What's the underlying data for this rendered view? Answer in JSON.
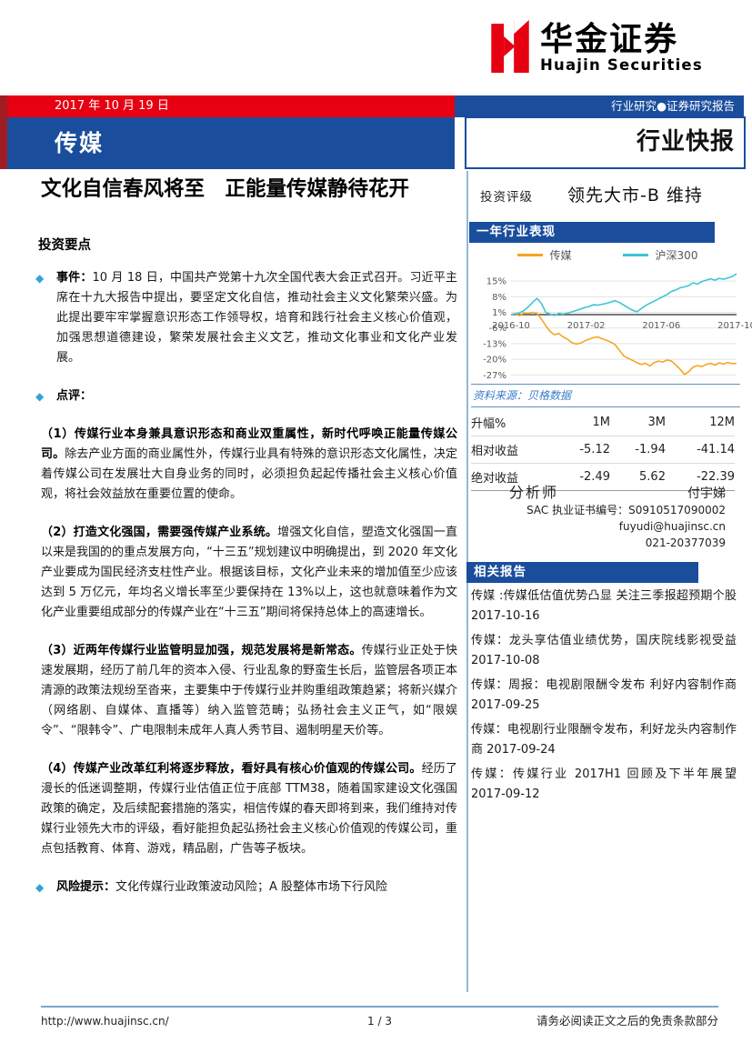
{
  "brand": {
    "logo_cn": "华金证券",
    "logo_en": "Huajin Securities"
  },
  "header": {
    "date": "2017 年 10 月 19 日",
    "right_tag": "行业研究●证券研究报告",
    "sector": "传媒",
    "report_type": "行业快报"
  },
  "main": {
    "title": "文化自信春风将至　正能量传媒静待花开",
    "section_heading": "投资要点",
    "bullets": [
      {
        "diamond": true,
        "lead": "事件：",
        "rest": "10 月 18 日，中国共产党第十九次全国代表大会正式召开。习近平主席在十九大报告中提出，要坚定文化自信，推动社会主义文化繁荣兴盛。为此提出要牢牢掌握意识形态工作领导权，培育和践行社会主义核心价值观，加强思想道德建设，繁荣发展社会主义文艺，推动文化事业和文化产业发展。"
      },
      {
        "diamond": true,
        "lead": "点评：",
        "rest": ""
      },
      {
        "diamond": false,
        "lead": "（1）传媒行业本身兼具意识形态和商业双重属性，新时代呼唤正能量传媒公司。",
        "rest": "除去产业方面的商业属性外，传媒行业具有特殊的意识形态文化属性，决定着传媒公司在发展壮大自身业务的同时，必须担负起起传播社会主义核心价值观，将社会效益放在重要位置的使命。"
      },
      {
        "diamond": false,
        "lead": "（2）打造文化强国，需要强传媒产业系统。",
        "rest": "增强文化自信，塑造文化强国一直以来是我国的的重点发展方向，“十三五”规划建议中明确提出，到 2020 年文化产业要成为国民经济支柱性产业。根据该目标，文化产业未来的增加值至少应该达到 5 万亿元，年均名义增长率至少要保持在 13%以上，这也就意味着作为文化产业重要组成部分的传媒产业在“十三五”期间将保持总体上的高速增长。"
      },
      {
        "diamond": false,
        "lead": "（3）近两年传媒行业监管明显加强，规范发展将是新常态。",
        "rest": "传媒行业正处于快速发展期，经历了前几年的资本入侵、行业乱象的野蛮生长后，监管层各项正本清源的政策法规纷至沓来，主要集中于传媒行业并购重组政策趋紧；将新兴媒介（网络剧、自媒体、直播等）纳入监管范畴；弘扬社会主义正气，如“限娱令”、“限韩令”、广电限制未成年人真人秀节目、遏制明星天价等。"
      },
      {
        "diamond": false,
        "lead": "（4）传媒产业改革红利将逐步释放，看好具有核心价值观的传媒公司。",
        "rest": "经历了漫长的低迷调整期，传媒行业估值正位于底部 TTM38，随着国家建设文化强国政策的确定，及后续配套措施的落实，相信传媒的春天即将到来，我们维持对传媒行业领先大市的评级，看好能担负起弘扬社会主义核心价值观的传媒公司，重点包括教育、体育、游戏，精品剧，广告等子板块。"
      },
      {
        "diamond": true,
        "lead": "风险提示：",
        "rest": "文化传媒行业政策波动风险；A 股整体市场下行风险"
      }
    ]
  },
  "sidebar": {
    "rating_label": "投资评级",
    "rating_value": "领先大市-B 维持",
    "chart_banner": "一年行业表现",
    "source": "资料来源：贝格数据",
    "perf_table": {
      "headers": [
        "升幅%",
        "1M",
        "3M",
        "12M"
      ],
      "rows": [
        {
          "label": "相对收益",
          "values": [
            "-5.12",
            "-1.94",
            "-41.14"
          ]
        },
        {
          "label": "绝对收益",
          "values": [
            "-2.49",
            "5.62",
            "-22.39"
          ]
        }
      ]
    },
    "analyst": {
      "heading": "分析师",
      "name": "付宇娣",
      "sac": "SAC 执业证书编号：S0910517090002",
      "email": "fuyudi@huajinsc.cn",
      "phone": "021-20377039"
    },
    "related_banner": "相关报告",
    "related_reports": [
      {
        "title": "传媒 :传媒低估值优势凸显 关注三季报超预期个股",
        "date": "2017-10-16"
      },
      {
        "title": "传媒：龙头享估值业绩优势，国庆院线影视受益",
        "date": "2017-10-08"
      },
      {
        "title": "传媒：周报：电视剧限酬令发布 利好内容制作商",
        "date": "2017-09-25"
      },
      {
        "title": "传媒：电视剧行业限酬令发布，利好龙头内容制作商",
        "date": "2017-09-24"
      },
      {
        "title": "传媒：传媒行业 2017H1 回顾及下半年展望",
        "date": "2017-09-12"
      }
    ]
  },
  "chart_data": {
    "type": "line",
    "title": "一年行业表现",
    "x_tick_labels": [
      "2016-10",
      "2017-02",
      "2017-06",
      "2017-10"
    ],
    "y_ticks": [
      15,
      8,
      1,
      -6,
      -13,
      -20,
      -27
    ],
    "y_unit": "%",
    "ylim": [
      -28.5,
      19.5
    ],
    "grid": true,
    "legend_position": "top",
    "series": [
      {
        "name": "传媒",
        "color": "#F5A623",
        "values": [
          0,
          0.3,
          -0.5,
          0.8,
          0.5,
          1.0,
          0.5,
          -2,
          -5,
          -7.5,
          -9,
          -8.5,
          -10,
          -11,
          -12.5,
          -13.2,
          -12.8,
          -11.8,
          -11,
          -10.3,
          -10,
          -10.8,
          -11.5,
          -12.3,
          -13.5,
          -16,
          -18.5,
          -19.5,
          -20.5,
          -21.5,
          -22.3,
          -21.8,
          -23,
          -21.5,
          -20.8,
          -21.2,
          -20.3,
          -20.8,
          -22.5,
          -24.5,
          -26.8,
          -25.5,
          -23.5,
          -22.8,
          -23.3,
          -22.3,
          -21.8,
          -22.6,
          -21.6,
          -22.2,
          -21.4,
          -22.0,
          -21.8
        ]
      },
      {
        "name": "沪深300",
        "color": "#3EC6D2",
        "values": [
          0,
          0.4,
          0.8,
          1.8,
          3.5,
          5.5,
          7.2,
          5.0,
          1.0,
          0.2,
          -0.4,
          0.5,
          0.2,
          0.6,
          1.2,
          1.8,
          2.4,
          3.2,
          3.6,
          4.4,
          4.2,
          4.6,
          5.0,
          5.6,
          6.2,
          5.4,
          4.2,
          3.0,
          2.0,
          1.2,
          2.6,
          4.0,
          5.0,
          6.0,
          7.0,
          8.0,
          9.0,
          10.4,
          11.0,
          12.0,
          12.4,
          13.0,
          14.2,
          13.6,
          14.8,
          15.4,
          16.0,
          15.4,
          16.2,
          15.8,
          16.4,
          17.0,
          18.2
        ]
      }
    ]
  },
  "footer": {
    "url": "http://www.huajinsc.cn/",
    "page": "1 / 3",
    "disclaimer": "请务必阅读正文之后的免责条款部分"
  },
  "colors": {
    "brand_red": "#E60012",
    "brand_dark_red": "#9E1D23",
    "brand_blue": "#1A4E9D",
    "diamond_blue": "#2FA3DC",
    "divider_blue": "#8FB9D9",
    "source_blue": "#3A7BC8",
    "chart_media": "#F5A623",
    "chart_hs300": "#3EC6D2"
  }
}
